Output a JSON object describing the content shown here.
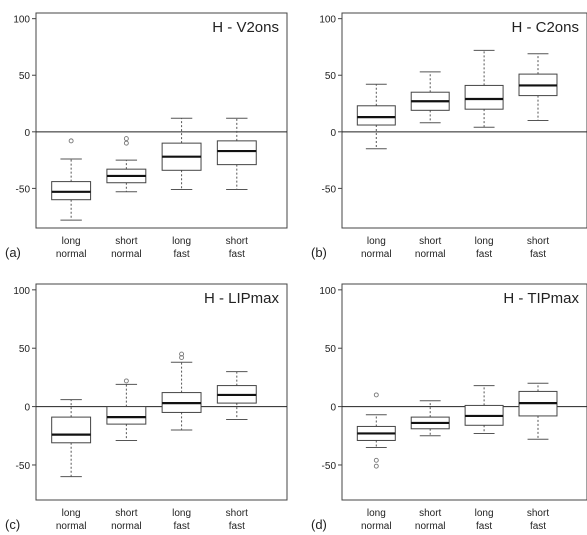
{
  "chart_data": [
    {
      "type": "box",
      "panel_label": "(a)",
      "title": "H - V2ons",
      "categories": [
        [
          "long",
          "normal"
        ],
        [
          "short",
          "normal"
        ],
        [
          "long",
          "fast"
        ],
        [
          "short",
          "fast"
        ]
      ],
      "ylim": [
        -85,
        105
      ],
      "yticks": [
        100,
        50,
        0,
        -50
      ],
      "reference_line": 0,
      "boxes": [
        {
          "whisker_low": -78,
          "q1": -60,
          "median": -53,
          "q3": -44,
          "whisker_high": -24,
          "outliers": [
            -8
          ]
        },
        {
          "whisker_low": -53,
          "q1": -45,
          "median": -39,
          "q3": -33,
          "whisker_high": -25,
          "outliers": [
            -6,
            -10
          ]
        },
        {
          "whisker_low": -51,
          "q1": -34,
          "median": -22,
          "q3": -10,
          "whisker_high": 12,
          "outliers": []
        },
        {
          "whisker_low": -51,
          "q1": -29,
          "median": -17,
          "q3": -8,
          "whisker_high": 12,
          "outliers": []
        }
      ]
    },
    {
      "type": "box",
      "panel_label": "(b)",
      "title": "H - C2ons",
      "categories": [
        [
          "long",
          "normal"
        ],
        [
          "short",
          "normal"
        ],
        [
          "long",
          "fast"
        ],
        [
          "short",
          "fast"
        ]
      ],
      "ylim": [
        -85,
        105
      ],
      "yticks": [
        100,
        50,
        0,
        -50
      ],
      "reference_line": 0,
      "boxes": [
        {
          "whisker_low": -15,
          "q1": 6,
          "median": 13,
          "q3": 23,
          "whisker_high": 42,
          "outliers": []
        },
        {
          "whisker_low": 8,
          "q1": 19,
          "median": 27,
          "q3": 35,
          "whisker_high": 53,
          "outliers": []
        },
        {
          "whisker_low": 4,
          "q1": 20,
          "median": 29,
          "q3": 41,
          "whisker_high": 72,
          "outliers": []
        },
        {
          "whisker_low": 10,
          "q1": 32,
          "median": 41,
          "q3": 51,
          "whisker_high": 69,
          "outliers": []
        }
      ]
    },
    {
      "type": "box",
      "panel_label": "(c)",
      "title": "H - LIPmax",
      "categories": [
        [
          "long",
          "normal"
        ],
        [
          "short",
          "normal"
        ],
        [
          "long",
          "fast"
        ],
        [
          "short",
          "fast"
        ]
      ],
      "ylim": [
        -80,
        105
      ],
      "yticks": [
        100,
        50,
        0,
        -50
      ],
      "reference_line": 0,
      "boxes": [
        {
          "whisker_low": -60,
          "q1": -31,
          "median": -24,
          "q3": -9,
          "whisker_high": 6,
          "outliers": []
        },
        {
          "whisker_low": -29,
          "q1": -15,
          "median": -9,
          "q3": 0,
          "whisker_high": 19,
          "outliers": [
            22
          ]
        },
        {
          "whisker_low": -20,
          "q1": -5,
          "median": 3,
          "q3": 12,
          "whisker_high": 38,
          "outliers": [
            42,
            45
          ]
        },
        {
          "whisker_low": -11,
          "q1": 3,
          "median": 10,
          "q3": 18,
          "whisker_high": 30,
          "outliers": []
        }
      ]
    },
    {
      "type": "box",
      "panel_label": "(d)",
      "title": "H - TIPmax",
      "categories": [
        [
          "long",
          "normal"
        ],
        [
          "short",
          "normal"
        ],
        [
          "long",
          "fast"
        ],
        [
          "short",
          "fast"
        ]
      ],
      "ylim": [
        -80,
        105
      ],
      "yticks": [
        100,
        50,
        0,
        -50
      ],
      "reference_line": 0,
      "boxes": [
        {
          "whisker_low": -35,
          "q1": -29,
          "median": -23,
          "q3": -17,
          "whisker_high": -7,
          "outliers": [
            10,
            -46,
            -51
          ]
        },
        {
          "whisker_low": -25,
          "q1": -19,
          "median": -14,
          "q3": -9,
          "whisker_high": 5,
          "outliers": []
        },
        {
          "whisker_low": -23,
          "q1": -16,
          "median": -8,
          "q3": 1,
          "whisker_high": 18,
          "outliers": []
        },
        {
          "whisker_low": -28,
          "q1": -8,
          "median": 3,
          "q3": 13,
          "whisker_high": 20,
          "outliers": []
        }
      ]
    }
  ]
}
